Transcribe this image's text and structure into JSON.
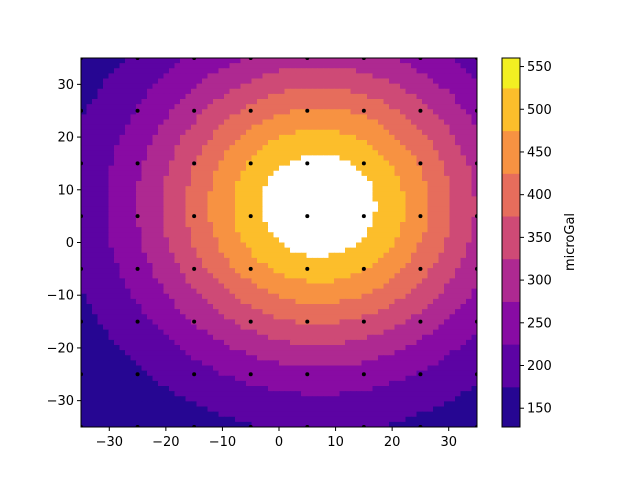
{
  "chart_data": {
    "type": "heatmap",
    "subtype": "filled-contour",
    "title": "",
    "xlabel": "",
    "ylabel": "",
    "xlim": [
      -35,
      35
    ],
    "ylim": [
      -35,
      35
    ],
    "x_ticks": [
      -30,
      -20,
      -10,
      0,
      10,
      20,
      30
    ],
    "y_ticks": [
      -30,
      -20,
      -10,
      0,
      10,
      20,
      30
    ],
    "grid": false,
    "colormap": "plasma",
    "colorbar": {
      "label": "microGal",
      "range": [
        128,
        560
      ],
      "ticks": [
        150,
        200,
        250,
        300,
        350,
        400,
        450,
        500,
        550
      ]
    },
    "contour_levels": [
      125,
      175,
      225,
      275,
      325,
      375,
      425,
      475,
      525,
      575
    ],
    "gravity_anomaly_model": {
      "peak_value": 570,
      "peak_center": [
        7,
        7
      ],
      "base_value": 120
    },
    "stations_x": [
      -35,
      -25,
      -15,
      -5,
      5,
      15,
      25,
      35
    ],
    "stations_y": [
      -35,
      -25,
      -15,
      -5,
      5,
      15,
      25,
      35
    ],
    "colors": {
      "frame": "#000000",
      "station": "#000000",
      "peak_hole": "#ffffff"
    }
  }
}
